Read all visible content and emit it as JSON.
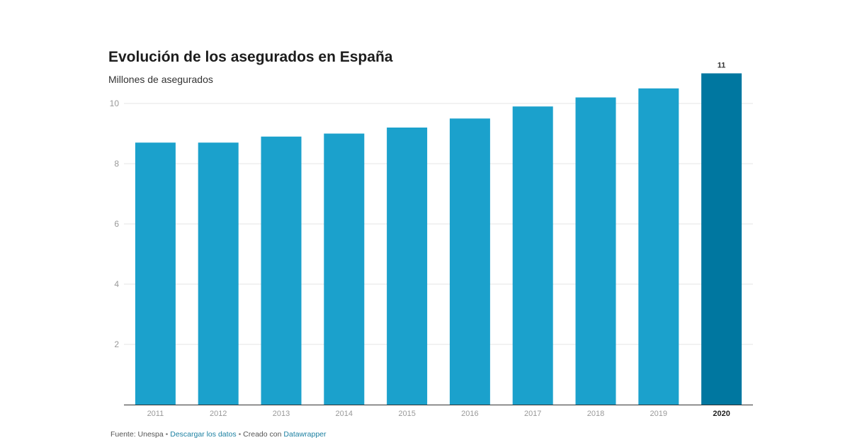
{
  "title": "Evolución de los asegurados en España",
  "subtitle": "Millones de asegurados",
  "chart_data": {
    "type": "bar",
    "categories": [
      "2011",
      "2012",
      "2013",
      "2014",
      "2015",
      "2016",
      "2017",
      "2018",
      "2019",
      "2020"
    ],
    "values": [
      8.7,
      8.7,
      8.9,
      9.0,
      9.2,
      9.5,
      9.9,
      10.2,
      10.5,
      11.0
    ],
    "highlight_index": 9,
    "data_labels": [
      {
        "index": 9,
        "text": "11"
      }
    ],
    "yticks": [
      2,
      4,
      6,
      8,
      10
    ],
    "ylim": [
      0,
      11.5
    ],
    "grid": true,
    "colors": {
      "bar": "#1ba1cc",
      "highlight": "#0077a0",
      "grid": "#e6e6e6",
      "axis": "#333333",
      "tick": "#999999"
    }
  },
  "footer": {
    "source": "Fuente: Unespa",
    "bullet": "•",
    "download_link": "Descargar los datos",
    "created_with": "Creado con",
    "tool_link": "Datawrapper"
  }
}
